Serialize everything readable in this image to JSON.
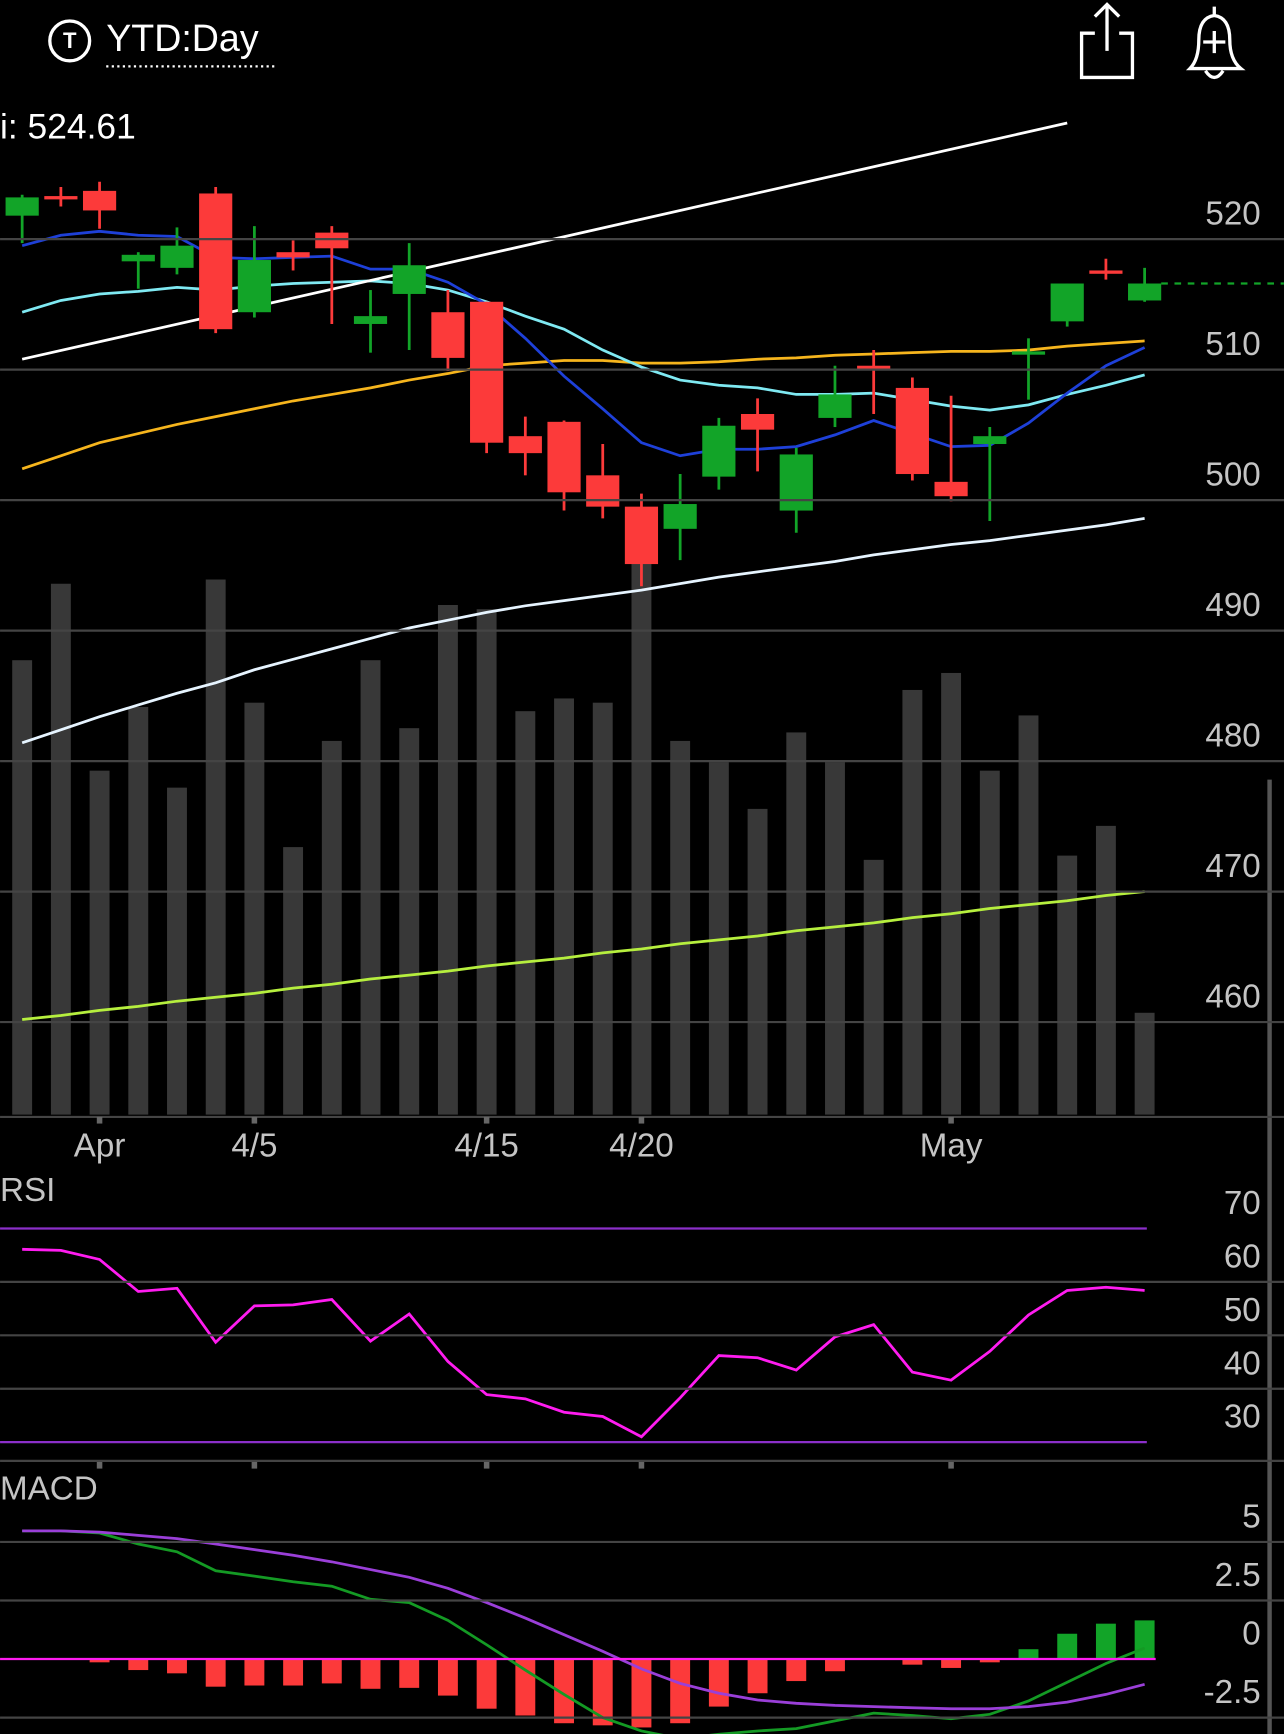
{
  "header": {
    "icon_letter": "T",
    "title": "YTD:Day"
  },
  "chart_data": [
    {
      "type": "candlestick",
      "label": "i: 524.61",
      "categories": [
        null,
        null,
        "Apr",
        null,
        null,
        null,
        "4/5",
        null,
        null,
        null,
        null,
        null,
        "4/15",
        null,
        null,
        null,
        "4/20",
        null,
        null,
        null,
        null,
        null,
        null,
        null,
        "May",
        null,
        null,
        null,
        null,
        null
      ],
      "open": [
        521.8,
        523.3,
        523.7,
        518.3,
        517.8,
        523.5,
        514.4,
        519.0,
        520.5,
        513.5,
        515.8,
        514.4,
        515.2,
        504.9,
        506.0,
        501.9,
        499.5,
        497.8,
        501.8,
        506.6,
        499.2,
        506.3,
        510.3,
        508.6,
        501.4,
        504.3,
        511.2,
        513.7,
        517.6,
        515.3
      ],
      "high": [
        523.4,
        524.0,
        524.4,
        519.0,
        520.9,
        524.0,
        521.0,
        519.9,
        521.0,
        516.1,
        519.7,
        516.1,
        515.2,
        506.4,
        506.1,
        504.3,
        500.5,
        502.0,
        506.3,
        507.8,
        504.0,
        510.3,
        511.5,
        509.4,
        508.0,
        505.6,
        512.4,
        516.6,
        518.5,
        517.8
      ],
      "low": [
        519.7,
        522.5,
        520.8,
        516.2,
        517.3,
        512.8,
        514.0,
        517.6,
        513.5,
        511.3,
        511.5,
        509.9,
        503.6,
        501.9,
        499.2,
        498.6,
        493.4,
        495.4,
        500.8,
        502.2,
        497.5,
        505.6,
        506.6,
        501.5,
        499.9,
        498.4,
        507.7,
        513.3,
        516.9,
        515.2
      ],
      "close": [
        523.2,
        523.1,
        522.2,
        518.8,
        519.5,
        513.1,
        518.4,
        518.6,
        519.3,
        514.1,
        518.0,
        510.9,
        504.4,
        503.6,
        500.6,
        499.5,
        495.1,
        499.7,
        505.7,
        505.4,
        503.5,
        508.1,
        510.0,
        502.0,
        500.3,
        504.9,
        511.4,
        516.6,
        517.4,
        516.6
      ],
      "up_color": "#12a428",
      "down_color": "#fc3a3a",
      "ylim": [
        452.9,
        530.7
      ],
      "yticks": [
        460,
        470,
        480,
        490,
        500,
        510,
        520
      ],
      "grid": true,
      "y2lim": [
        0,
        239
      ],
      "series": [
        {
          "type": "bar",
          "axis": "y2",
          "color": "#383838",
          "values": [
            107,
            125,
            81,
            96,
            77,
            126,
            97,
            63,
            88,
            107,
            91,
            120,
            119,
            95,
            98,
            97,
            131,
            88,
            83,
            72,
            90,
            83,
            60,
            100,
            104,
            81,
            94,
            61,
            68,
            24
          ]
        },
        {
          "type": "line",
          "color": "#b6ef3e",
          "values": [
            460.2,
            460.5,
            460.9,
            461.2,
            461.6,
            461.9,
            462.2,
            462.6,
            462.9,
            463.3,
            463.6,
            463.9,
            464.3,
            464.6,
            464.9,
            465.3,
            465.6,
            466.0,
            466.3,
            466.6,
            467.0,
            467.3,
            467.6,
            468.0,
            468.3,
            468.7,
            469.0,
            469.3,
            469.7,
            470.0
          ]
        },
        {
          "type": "line",
          "color": "#e6f4ff",
          "values": [
            481.4,
            482.4,
            483.4,
            484.3,
            485.2,
            486.0,
            487.0,
            487.8,
            488.6,
            489.4,
            490.2,
            490.8,
            491.4,
            491.9,
            492.3,
            492.7,
            493.1,
            493.6,
            494.1,
            494.5,
            494.9,
            495.3,
            495.8,
            496.2,
            496.6,
            496.9,
            497.3,
            497.7,
            498.1,
            498.6
          ]
        },
        {
          "type": "line",
          "color": "#f6b51d",
          "values": [
            502.4,
            503.4,
            504.4,
            505.1,
            505.8,
            506.4,
            507.0,
            507.6,
            508.1,
            508.6,
            509.2,
            509.7,
            510.3,
            510.5,
            510.7,
            510.7,
            510.5,
            510.5,
            510.6,
            510.8,
            510.9,
            511.1,
            511.2,
            511.3,
            511.4,
            511.4,
            511.5,
            511.8,
            512.0,
            512.2
          ]
        },
        {
          "type": "line",
          "color": "#7fe9f2",
          "values": [
            514.4,
            515.3,
            515.8,
            516.0,
            516.3,
            516.1,
            516.4,
            516.6,
            516.7,
            516.8,
            516.6,
            516.1,
            515.2,
            514.1,
            513.1,
            511.5,
            510.2,
            509.2,
            508.8,
            508.6,
            508.1,
            508.1,
            508.2,
            507.7,
            507.2,
            506.9,
            507.3,
            508.1,
            508.8,
            509.6
          ]
        },
        {
          "type": "line",
          "color": "#1e40d8",
          "values": [
            519.5,
            520.3,
            520.6,
            520.3,
            520.2,
            518.6,
            518.5,
            518.6,
            518.7,
            517.7,
            517.7,
            516.7,
            515.0,
            512.4,
            509.5,
            507.0,
            504.4,
            503.4,
            503.9,
            503.9,
            504.1,
            505.0,
            506.1,
            505.1,
            504.1,
            504.2,
            505.9,
            508.2,
            510.3,
            511.7
          ]
        }
      ],
      "trendline": {
        "color": "#ffffff",
        "x": [
          0,
          27
        ],
        "values": [
          510.8,
          528.9
        ]
      }
    },
    {
      "type": "line",
      "title": "RSI",
      "ylim": [
        26.7,
        79.5
      ],
      "yticks": [
        30,
        40,
        50,
        60,
        70
      ],
      "grid": true,
      "band_color": "#8b2fc9",
      "series": [
        {
          "type": "line",
          "color": "#ff1cf0",
          "values": [
            66.1,
            65.9,
            64.2,
            58.2,
            58.8,
            48.7,
            55.5,
            55.7,
            56.7,
            48.9,
            54.0,
            45.1,
            38.9,
            38.1,
            35.6,
            34.8,
            31.0,
            38.3,
            46.2,
            45.8,
            43.5,
            49.7,
            52.0,
            43.1,
            41.6,
            47.0,
            53.8,
            58.4,
            59.0,
            58.4
          ]
        }
      ]
    },
    {
      "type": "line",
      "title": "MACD",
      "ylim": [
        -3.2,
        7.8
      ],
      "yticks": [
        -2.5,
        0,
        2.5,
        5
      ],
      "grid": true,
      "zero_line_color": "#ff1cf0",
      "series": [
        {
          "type": "bar",
          "up_color": "#12a428",
          "down_color": "#fc3a3a",
          "values": [
            0,
            0,
            -0.14,
            -0.47,
            -0.61,
            -1.18,
            -1.13,
            -1.13,
            -1.04,
            -1.27,
            -1.23,
            -1.56,
            -2.12,
            -2.41,
            -2.74,
            -2.83,
            -2.92,
            -2.74,
            -2.03,
            -1.46,
            -0.94,
            -0.52,
            0,
            -0.24,
            -0.38,
            -0.14,
            0.42,
            1.08,
            1.51,
            1.65
          ]
        },
        {
          "type": "line",
          "color": "#149a24",
          "values": [
            5.47,
            5.47,
            5.38,
            4.91,
            4.58,
            3.77,
            3.54,
            3.3,
            3.11,
            2.55,
            2.41,
            1.65,
            0.61,
            -0.47,
            -1.51,
            -2.5,
            -3.07,
            -3.4,
            -3.21,
            -3.07,
            -2.97,
            -2.64,
            -2.31,
            -2.41,
            -2.55,
            -2.36,
            -1.79,
            -0.99,
            -0.19,
            0.47
          ]
        },
        {
          "type": "line",
          "color": "#9a3fd8",
          "values": [
            5.47,
            5.47,
            5.42,
            5.28,
            5.14,
            4.91,
            4.67,
            4.43,
            4.15,
            3.82,
            3.49,
            3.02,
            2.41,
            1.75,
            1.04,
            0.33,
            -0.42,
            -1.04,
            -1.46,
            -1.75,
            -1.89,
            -1.98,
            -2.03,
            -2.08,
            -2.12,
            -2.12,
            -2.03,
            -1.84,
            -1.51,
            -1.08
          ]
        }
      ]
    }
  ]
}
